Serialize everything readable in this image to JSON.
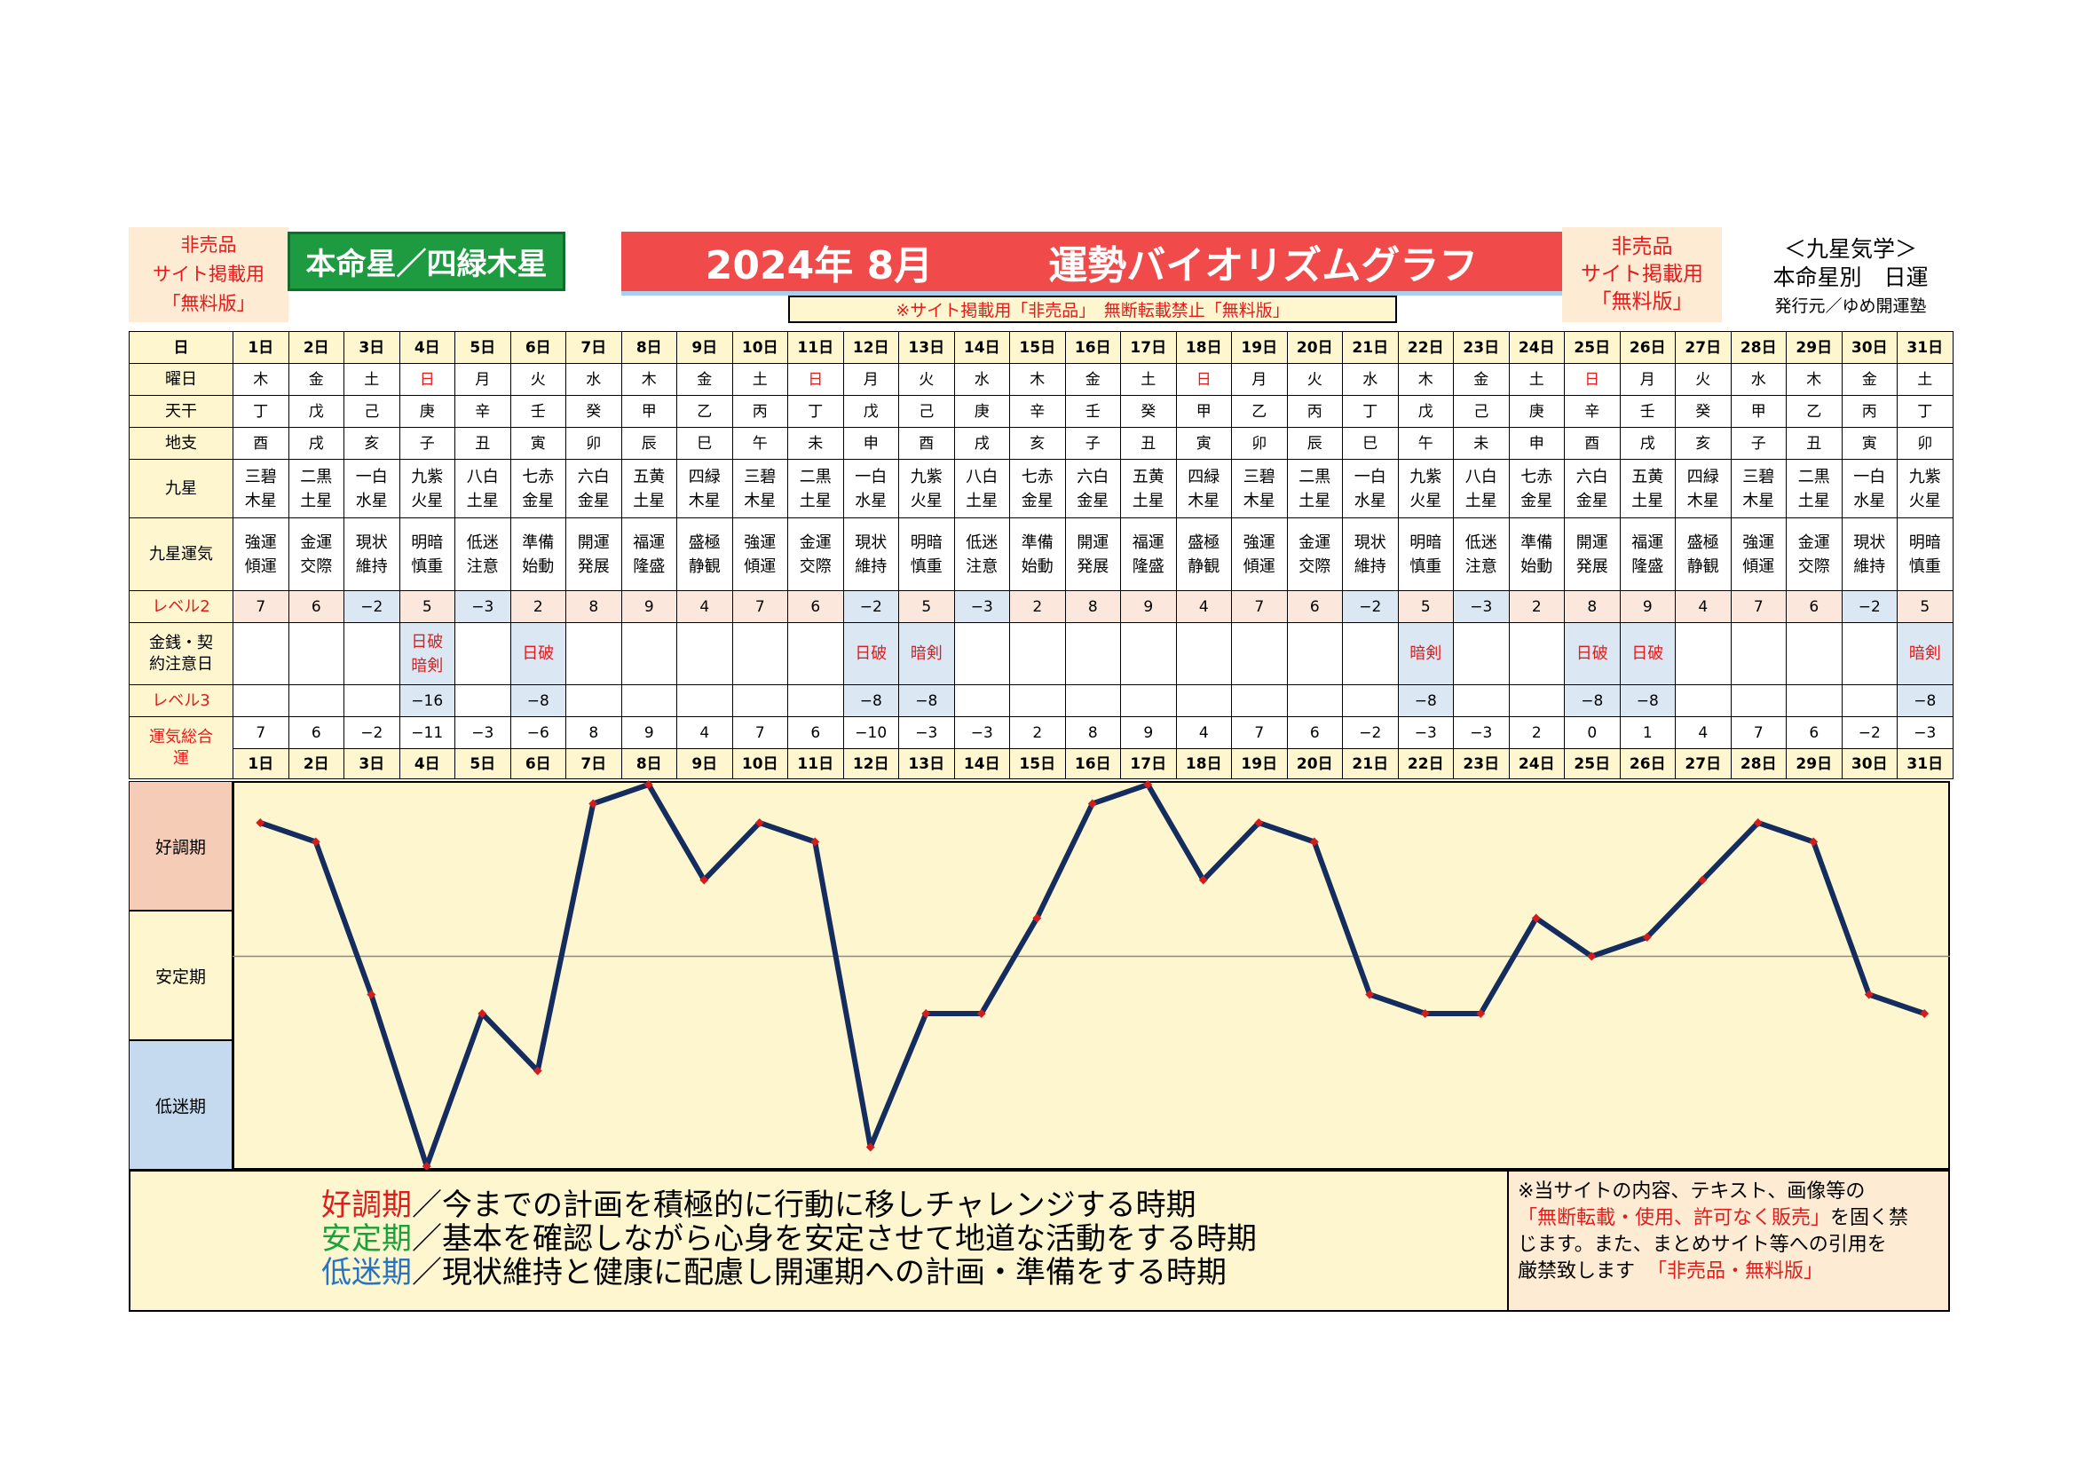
{
  "header": {
    "not_for_sale_left": [
      "非売品",
      "サイト掲載用",
      "「無料版」"
    ],
    "honmei": "本命星／四緑木星",
    "title_year_month": "2024年 8月",
    "title_main": "運勢バイオリズムグラフ",
    "warning": "※サイト掲載用「非売品」　無断転載禁止「無料版」",
    "not_for_sale_right": [
      "非売品",
      "サイト掲載用",
      "「無料版」"
    ],
    "kyusei_title": "＜九星気学＞",
    "kyusei_sub": "本命星別　日運",
    "publisher": "発行元／ゆめ開運塾"
  },
  "row_labels": {
    "day": "日",
    "weekday": "曜日",
    "tenkan": "天干",
    "chishi": "地支",
    "kyusei": "九星",
    "kyusei_unki": "九星運気",
    "level2": "レベル2",
    "money": "金銭・契約注意日",
    "level3": "レベル3",
    "total": "運気総合運"
  },
  "days": [
    "1日",
    "2日",
    "3日",
    "4日",
    "5日",
    "6日",
    "7日",
    "8日",
    "9日",
    "10日",
    "11日",
    "12日",
    "13日",
    "14日",
    "15日",
    "16日",
    "17日",
    "18日",
    "19日",
    "20日",
    "21日",
    "22日",
    "23日",
    "24日",
    "25日",
    "26日",
    "27日",
    "28日",
    "29日",
    "30日",
    "31日"
  ],
  "weekdays": [
    "木",
    "金",
    "土",
    "日",
    "月",
    "火",
    "水",
    "木",
    "金",
    "土",
    "日",
    "月",
    "火",
    "水",
    "木",
    "金",
    "土",
    "日",
    "月",
    "火",
    "水",
    "木",
    "金",
    "土",
    "日",
    "月",
    "火",
    "水",
    "木",
    "金",
    "土"
  ],
  "sunday_color": "#e11c1c",
  "tenkan": [
    "丁",
    "戊",
    "己",
    "庚",
    "辛",
    "壬",
    "癸",
    "甲",
    "乙",
    "丙",
    "丁",
    "戊",
    "己",
    "庚",
    "辛",
    "壬",
    "癸",
    "甲",
    "乙",
    "丙",
    "丁",
    "戊",
    "己",
    "庚",
    "辛",
    "壬",
    "癸",
    "甲",
    "乙",
    "丙",
    "丁"
  ],
  "chishi": [
    "酉",
    "戌",
    "亥",
    "子",
    "丑",
    "寅",
    "卯",
    "辰",
    "巳",
    "午",
    "未",
    "申",
    "酉",
    "戌",
    "亥",
    "子",
    "丑",
    "寅",
    "卯",
    "辰",
    "巳",
    "午",
    "未",
    "申",
    "酉",
    "戌",
    "亥",
    "子",
    "丑",
    "寅",
    "卯"
  ],
  "kyusei": [
    [
      "三碧",
      "木星"
    ],
    [
      "二黒",
      "土星"
    ],
    [
      "一白",
      "水星"
    ],
    [
      "九紫",
      "火星"
    ],
    [
      "八白",
      "土星"
    ],
    [
      "七赤",
      "金星"
    ],
    [
      "六白",
      "金星"
    ],
    [
      "五黄",
      "土星"
    ],
    [
      "四緑",
      "木星"
    ],
    [
      "三碧",
      "木星"
    ],
    [
      "二黒",
      "土星"
    ],
    [
      "一白",
      "水星"
    ],
    [
      "九紫",
      "火星"
    ],
    [
      "八白",
      "土星"
    ],
    [
      "七赤",
      "金星"
    ],
    [
      "六白",
      "金星"
    ],
    [
      "五黄",
      "土星"
    ],
    [
      "四緑",
      "木星"
    ],
    [
      "三碧",
      "木星"
    ],
    [
      "二黒",
      "土星"
    ],
    [
      "一白",
      "水星"
    ],
    [
      "九紫",
      "火星"
    ],
    [
      "八白",
      "土星"
    ],
    [
      "七赤",
      "金星"
    ],
    [
      "六白",
      "金星"
    ],
    [
      "五黄",
      "土星"
    ],
    [
      "四緑",
      "木星"
    ],
    [
      "三碧",
      "木星"
    ],
    [
      "二黒",
      "土星"
    ],
    [
      "一白",
      "水星"
    ],
    [
      "九紫",
      "火星"
    ]
  ],
  "kyusei_unki": [
    [
      "強運",
      "傾運"
    ],
    [
      "金運",
      "交際"
    ],
    [
      "現状",
      "維持"
    ],
    [
      "明暗",
      "慎重"
    ],
    [
      "低迷",
      "注意"
    ],
    [
      "準備",
      "始動"
    ],
    [
      "開運",
      "発展"
    ],
    [
      "福運",
      "隆盛"
    ],
    [
      "盛極",
      "静観"
    ],
    [
      "強運",
      "傾運"
    ],
    [
      "金運",
      "交際"
    ],
    [
      "現状",
      "維持"
    ],
    [
      "明暗",
      "慎重"
    ],
    [
      "低迷",
      "注意"
    ],
    [
      "準備",
      "始動"
    ],
    [
      "開運",
      "発展"
    ],
    [
      "福運",
      "隆盛"
    ],
    [
      "盛極",
      "静観"
    ],
    [
      "強運",
      "傾運"
    ],
    [
      "金運",
      "交際"
    ],
    [
      "現状",
      "維持"
    ],
    [
      "明暗",
      "慎重"
    ],
    [
      "低迷",
      "注意"
    ],
    [
      "準備",
      "始動"
    ],
    [
      "開運",
      "発展"
    ],
    [
      "福運",
      "隆盛"
    ],
    [
      "盛極",
      "静観"
    ],
    [
      "強運",
      "傾運"
    ],
    [
      "金運",
      "交際"
    ],
    [
      "現状",
      "維持"
    ],
    [
      "明暗",
      "慎重"
    ]
  ],
  "level2": [
    "7",
    "6",
    "−2",
    "5",
    "−3",
    "2",
    "8",
    "9",
    "4",
    "7",
    "6",
    "−2",
    "5",
    "−3",
    "2",
    "8",
    "9",
    "4",
    "7",
    "6",
    "−2",
    "5",
    "−3",
    "2",
    "8",
    "9",
    "4",
    "7",
    "6",
    "−2",
    "5"
  ],
  "money": [
    [],
    [],
    [],
    [
      "日破",
      "暗剣"
    ],
    [],
    [
      "日破"
    ],
    [],
    [],
    [],
    [],
    [],
    [
      "日破"
    ],
    [
      "暗剣"
    ],
    [],
    [],
    [],
    [],
    [],
    [],
    [],
    [],
    [
      "暗剣"
    ],
    [],
    [],
    [
      "日破"
    ],
    [
      "日破"
    ],
    [],
    [],
    [],
    [],
    [
      "暗剣"
    ]
  ],
  "level3": [
    "",
    "",
    "",
    "−16",
    "",
    "−8",
    "",
    "",
    "",
    "",
    "",
    "−8",
    "−8",
    "",
    "",
    "",
    "",
    "",
    "",
    "",
    "",
    "−8",
    "",
    "",
    "−8",
    "−8",
    "",
    "",
    "",
    "",
    "−8"
  ],
  "total": [
    "7",
    "6",
    "−2",
    "−11",
    "−3",
    "−6",
    "8",
    "9",
    "4",
    "7",
    "6",
    "−10",
    "−3",
    "−3",
    "2",
    "8",
    "9",
    "4",
    "7",
    "6",
    "−2",
    "−3",
    "−3",
    "2",
    "0",
    "1",
    "4",
    "7",
    "6",
    "−2",
    "−3"
  ],
  "zones": {
    "good": "好調期",
    "stable": "安定期",
    "low": "低迷期",
    "good_color": "#f5cdb6",
    "stable_color": "#fdf6cf",
    "low_color": "#c5daee"
  },
  "chart_data": {
    "type": "line",
    "x": [
      "1日",
      "2日",
      "3日",
      "4日",
      "5日",
      "6日",
      "7日",
      "8日",
      "9日",
      "10日",
      "11日",
      "12日",
      "13日",
      "14日",
      "15日",
      "16日",
      "17日",
      "18日",
      "19日",
      "20日",
      "21日",
      "22日",
      "23日",
      "24日",
      "25日",
      "26日",
      "27日",
      "28日",
      "29日",
      "30日",
      "31日"
    ],
    "values": [
      7,
      6,
      -2,
      -11,
      -3,
      -6,
      8,
      9,
      4,
      7,
      6,
      -10,
      -3,
      -3,
      2,
      8,
      9,
      4,
      7,
      6,
      -2,
      -3,
      -3,
      2,
      0,
      1,
      4,
      7,
      6,
      -2,
      -3
    ],
    "ylim": [
      -11,
      9
    ],
    "line_color": "#142c5e",
    "marker_color": "#d01e1e",
    "center_line": true
  },
  "legend": {
    "good_head": "好調期",
    "good_text": "／今までの計画を積極的に行動に移しチャレンジする時期",
    "stable_head": "安定期",
    "stable_text": "／基本を確認しながら心身を安定させて地道な活動をする時期",
    "low_head": "低迷期",
    "low_text": "／現状維持と健康に配慮し開運期への計画・準備をする時期",
    "good_color": "#e11c1c",
    "stable_color": "#17a33a",
    "low_color": "#2673c4"
  },
  "notice": {
    "line1": "※当サイトの内容、テキスト、画像等の",
    "line2_red": "「無断転載・使用、許可なく販売」",
    "line2_rest": "を固く禁",
    "line3": "じます。また、まとめサイト等への引用を",
    "line4": "厳禁致します",
    "line4_red": "「非売品・無料版」"
  }
}
